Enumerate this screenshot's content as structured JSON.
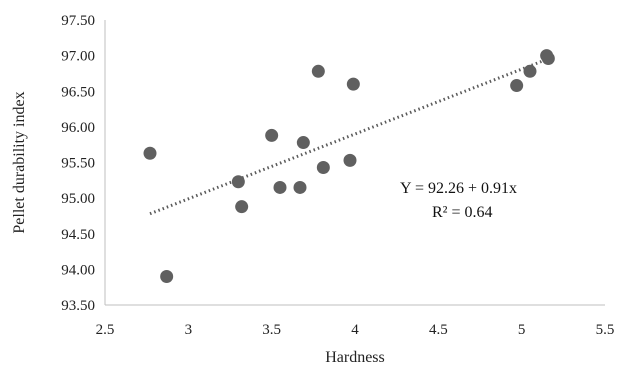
{
  "chart_data": {
    "type": "scatter",
    "xlabel": "Hardness",
    "ylabel": "Pellet durability index",
    "xlim": [
      2.5,
      5.5
    ],
    "ylim": [
      93.5,
      97.5
    ],
    "x_ticks": [
      "2.5",
      "3",
      "3.5",
      "4",
      "4.5",
      "5",
      "5.5"
    ],
    "y_ticks": [
      "93.50",
      "94.00",
      "94.50",
      "95.00",
      "95.50",
      "96.00",
      "96.50",
      "97.00",
      "97.50"
    ],
    "grid": false,
    "legend": "none",
    "points": [
      {
        "x": 2.77,
        "y": 95.63
      },
      {
        "x": 2.87,
        "y": 93.9
      },
      {
        "x": 3.3,
        "y": 95.23
      },
      {
        "x": 3.32,
        "y": 94.88
      },
      {
        "x": 3.5,
        "y": 95.88
      },
      {
        "x": 3.55,
        "y": 95.15
      },
      {
        "x": 3.67,
        "y": 95.15
      },
      {
        "x": 3.69,
        "y": 95.78
      },
      {
        "x": 3.78,
        "y": 96.78
      },
      {
        "x": 3.81,
        "y": 95.43
      },
      {
        "x": 3.97,
        "y": 95.53
      },
      {
        "x": 3.99,
        "y": 96.6
      },
      {
        "x": 4.97,
        "y": 96.58
      },
      {
        "x": 5.05,
        "y": 96.78
      },
      {
        "x": 5.15,
        "y": 97.0
      },
      {
        "x": 5.16,
        "y": 96.96
      }
    ],
    "trendline": {
      "style": "dotted",
      "intercept": 92.26,
      "slope": 0.91,
      "x_range": [
        2.77,
        5.16
      ]
    },
    "annotations": {
      "equation": "Y = 92.26 + 0.91x",
      "r_squared": "R² = 0.64"
    },
    "colors": {
      "marker": "#606060",
      "trendline": "#5a5a5a",
      "axis": "#bfbfbf",
      "text": "#222222"
    }
  }
}
